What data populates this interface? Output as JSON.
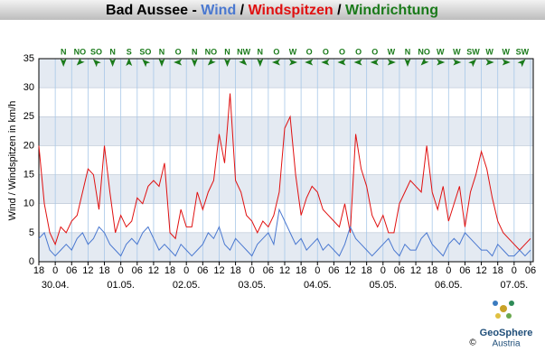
{
  "chart_data": {
    "type": "line",
    "title_prefix": "Bad Aussee -",
    "separator": "/",
    "direction_label": "Windrichtung",
    "direction_color": "#1a7a1a",
    "y_label": "Wind / Windspitzen in km/h",
    "x": [
      0,
      2,
      4,
      6,
      8,
      10,
      12,
      14,
      16,
      18,
      20,
      22,
      24,
      26,
      28,
      30,
      32,
      34,
      36,
      38,
      40,
      42,
      44,
      46,
      48,
      50,
      52,
      54,
      56,
      58,
      60,
      62,
      64,
      66,
      68,
      70,
      72,
      74,
      76,
      78,
      80,
      82,
      84,
      86,
      88,
      90,
      92,
      94,
      96,
      98,
      100,
      102,
      104,
      106,
      108,
      110,
      112,
      114,
      116,
      118,
      120,
      122,
      124,
      126,
      128,
      130,
      132,
      134,
      136,
      138,
      140,
      142,
      144,
      146,
      148,
      150,
      152,
      154,
      156,
      158,
      160,
      162,
      164,
      166,
      168,
      170,
      172,
      174,
      176,
      178,
      180
    ],
    "series": [
      {
        "name": "Wind",
        "color": "#4a78d0",
        "values": [
          4,
          5,
          2,
          1,
          2,
          3,
          2,
          4,
          5,
          3,
          4,
          6,
          5,
          3,
          2,
          1,
          3,
          4,
          3,
          5,
          6,
          4,
          2,
          3,
          2,
          1,
          3,
          2,
          1,
          2,
          3,
          5,
          4,
          6,
          3,
          2,
          4,
          3,
          2,
          1,
          3,
          4,
          5,
          3,
          9,
          7,
          5,
          3,
          4,
          2,
          3,
          4,
          2,
          3,
          2,
          1,
          3,
          6,
          4,
          3,
          2,
          1,
          2,
          3,
          4,
          2,
          1,
          3,
          2,
          2,
          4,
          5,
          3,
          2,
          1,
          3,
          4,
          3,
          5,
          4,
          3,
          2,
          2,
          1,
          3,
          2,
          1,
          1,
          2,
          1,
          2
        ]
      },
      {
        "name": "Windspitzen",
        "color": "#e01010",
        "values": [
          20,
          10,
          5,
          3,
          6,
          5,
          7,
          8,
          12,
          16,
          15,
          9,
          20,
          12,
          5,
          8,
          6,
          7,
          11,
          10,
          13,
          14,
          13,
          17,
          5,
          4,
          9,
          6,
          6,
          12,
          9,
          12,
          14,
          22,
          17,
          29,
          14,
          12,
          8,
          7,
          5,
          7,
          6,
          8,
          12,
          23,
          25,
          15,
          8,
          11,
          13,
          12,
          9,
          8,
          7,
          6,
          10,
          5,
          22,
          16,
          13,
          8,
          6,
          8,
          5,
          5,
          10,
          12,
          14,
          13,
          12,
          20,
          12,
          9,
          13,
          7,
          10,
          13,
          6,
          12,
          15,
          19,
          16,
          11,
          7,
          5,
          4,
          3,
          2,
          3,
          4
        ]
      }
    ],
    "directions": {
      "x": [
        9,
        15,
        21,
        27,
        33,
        39,
        45,
        51,
        57,
        63,
        69,
        75,
        81,
        87,
        93,
        99,
        105,
        111,
        117,
        123,
        129,
        135,
        141,
        147,
        153,
        159,
        165,
        171,
        177
      ],
      "labels": [
        "N",
        "NO",
        "SO",
        "N",
        "S",
        "SO",
        "N",
        "O",
        "N",
        "NO",
        "N",
        "NW",
        "N",
        "O",
        "W",
        "O",
        "O",
        "O",
        "O",
        "O",
        "W",
        "N",
        "NO",
        "W",
        "W",
        "SW",
        "W",
        "W",
        "SW"
      ]
    },
    "xlim": [
      0,
      181
    ],
    "xticks": [
      {
        "value": 0,
        "label": "18"
      },
      {
        "value": 6,
        "label": "0"
      },
      {
        "value": 12,
        "label": "06"
      },
      {
        "value": 18,
        "label": "12"
      },
      {
        "value": 24,
        "label": "18"
      },
      {
        "value": 30,
        "label": "0"
      },
      {
        "value": 36,
        "label": "06"
      },
      {
        "value": 42,
        "label": "12"
      },
      {
        "value": 48,
        "label": "18"
      },
      {
        "value": 54,
        "label": "0"
      },
      {
        "value": 60,
        "label": "06"
      },
      {
        "value": 66,
        "label": "12"
      },
      {
        "value": 72,
        "label": "18"
      },
      {
        "value": 78,
        "label": "0"
      },
      {
        "value": 84,
        "label": "06"
      },
      {
        "value": 90,
        "label": "12"
      },
      {
        "value": 96,
        "label": "18"
      },
      {
        "value": 102,
        "label": "0"
      },
      {
        "value": 108,
        "label": "06"
      },
      {
        "value": 114,
        "label": "12"
      },
      {
        "value": 120,
        "label": "18"
      },
      {
        "value": 126,
        "label": "0"
      },
      {
        "value": 132,
        "label": "06"
      },
      {
        "value": 138,
        "label": "12"
      },
      {
        "value": 144,
        "label": "18"
      },
      {
        "value": 150,
        "label": "0"
      },
      {
        "value": 156,
        "label": "06"
      },
      {
        "value": 162,
        "label": "12"
      },
      {
        "value": 168,
        "label": "18"
      },
      {
        "value": 174,
        "label": "0"
      },
      {
        "value": 180,
        "label": "06"
      }
    ],
    "date_labels": [
      {
        "value": 6,
        "label": "30.04."
      },
      {
        "value": 30,
        "label": "01.05."
      },
      {
        "value": 54,
        "label": "02.05."
      },
      {
        "value": 78,
        "label": "03.05."
      },
      {
        "value": 102,
        "label": "04.05."
      },
      {
        "value": 126,
        "label": "05.05."
      },
      {
        "value": 150,
        "label": "06.05."
      },
      {
        "value": 174,
        "label": "07.05."
      }
    ],
    "ylim": [
      0,
      35
    ],
    "yticks": [
      0,
      5,
      10,
      15,
      20,
      25,
      30,
      35
    ],
    "grid": true,
    "logo": {
      "name": "GeoSphere",
      "sub": "Austria",
      "copyright": "©"
    }
  }
}
